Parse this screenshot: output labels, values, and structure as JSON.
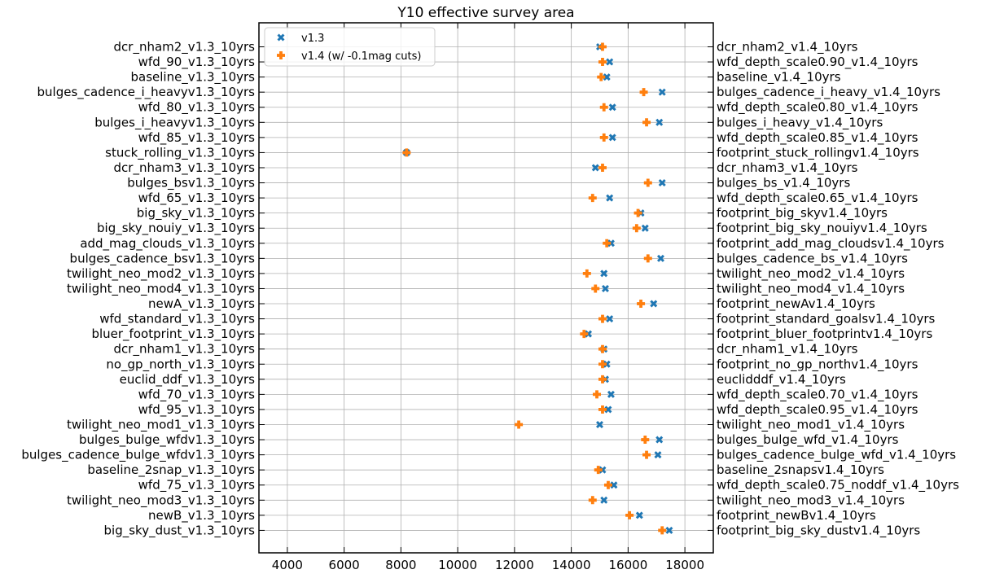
{
  "chart_data": {
    "type": "scatter",
    "title": "Y10 effective survey area",
    "xlabel": "",
    "ylabel": "",
    "xlim": [
      3000,
      19000
    ],
    "xticks": [
      4000,
      6000,
      8000,
      10000,
      12000,
      14000,
      16000,
      18000
    ],
    "grid": true,
    "legend_position": "top-left",
    "labels_left": [
      "dcr_nham2_v1.3_10yrs",
      "wfd_90_v1.3_10yrs",
      "baseline_v1.3_10yrs",
      "bulges_cadence_i_heavyv1.3_10yrs",
      "wfd_80_v1.3_10yrs",
      "bulges_i_heavyv1.3_10yrs",
      "wfd_85_v1.3_10yrs",
      "stuck_rolling_v1.3_10yrs",
      "dcr_nham3_v1.3_10yrs",
      "bulges_bsv1.3_10yrs",
      "wfd_65_v1.3_10yrs",
      "big_sky_v1.3_10yrs",
      "big_sky_nouiy_v1.3_10yrs",
      "add_mag_clouds_v1.3_10yrs",
      "bulges_cadence_bsv1.3_10yrs",
      "twilight_neo_mod2_v1.3_10yrs",
      "twilight_neo_mod4_v1.3_10yrs",
      "newA_v1.3_10yrs",
      "wfd_standard_v1.3_10yrs",
      "bluer_footprint_v1.3_10yrs",
      "dcr_nham1_v1.3_10yrs",
      "no_gp_north_v1.3_10yrs",
      "euclid_ddf_v1.3_10yrs",
      "wfd_70_v1.3_10yrs",
      "wfd_95_v1.3_10yrs",
      "twilight_neo_mod1_v1.3_10yrs",
      "bulges_bulge_wfdv1.3_10yrs",
      "bulges_cadence_bulge_wfdv1.3_10yrs",
      "baseline_2snap_v1.3_10yrs",
      "wfd_75_v1.3_10yrs",
      "twilight_neo_mod3_v1.3_10yrs",
      "newB_v1.3_10yrs",
      "big_sky_dust_v1.3_10yrs"
    ],
    "labels_right": [
      "dcr_nham2_v1.4_10yrs",
      "wfd_depth_scale0.90_v1.4_10yrs",
      "baseline_v1.4_10yrs",
      "bulges_cadence_i_heavy_v1.4_10yrs",
      "wfd_depth_scale0.80_v1.4_10yrs",
      "bulges_i_heavy_v1.4_10yrs",
      "wfd_depth_scale0.85_v1.4_10yrs",
      "footprint_stuck_rollingv1.4_10yrs",
      "dcr_nham3_v1.4_10yrs",
      "bulges_bs_v1.4_10yrs",
      "wfd_depth_scale0.65_v1.4_10yrs",
      "footprint_big_skyv1.4_10yrs",
      "footprint_big_sky_nouiyv1.4_10yrs",
      "footprint_add_mag_cloudsv1.4_10yrs",
      "bulges_cadence_bs_v1.4_10yrs",
      "twilight_neo_mod2_v1.4_10yrs",
      "twilight_neo_mod4_v1.4_10yrs",
      "footprint_newAv1.4_10yrs",
      "footprint_standard_goalsv1.4_10yrs",
      "footprint_bluer_footprintv1.4_10yrs",
      "dcr_nham1_v1.4_10yrs",
      "footprint_no_gp_northv1.4_10yrs",
      "euclidddf_v1.4_10yrs",
      "wfd_depth_scale0.70_v1.4_10yrs",
      "wfd_depth_scale0.95_v1.4_10yrs",
      "twilight_neo_mod1_v1.4_10yrs",
      "bulges_bulge_wfd_v1.4_10yrs",
      "bulges_cadence_bulge_wfd_v1.4_10yrs",
      "baseline_2snapsv1.4_10yrs",
      "wfd_depth_scale0.75_noddf_v1.4_10yrs",
      "twilight_neo_mod3_v1.4_10yrs",
      "footprint_newBv1.4_10yrs",
      "footprint_big_sky_dustv1.4_10yrs"
    ],
    "series": [
      {
        "name": "v1.3",
        "marker": "x",
        "color": "#1f77b4",
        "values": [
          15000,
          15350,
          15250,
          17200,
          15450,
          17100,
          15450,
          8200,
          14850,
          17200,
          15350,
          16450,
          16600,
          15400,
          17150,
          15150,
          15200,
          16900,
          15350,
          14600,
          15150,
          15250,
          15200,
          15400,
          15300,
          15000,
          17100,
          17050,
          15100,
          15500,
          15150,
          16400,
          17450
        ]
      },
      {
        "name": "v1.4 (w/ -0.1mag cuts)",
        "marker": "plus",
        "color": "#ff7f0e",
        "values": [
          15100,
          15100,
          15050,
          16550,
          15150,
          16650,
          15150,
          8200,
          15100,
          16700,
          14750,
          16350,
          16300,
          15250,
          16700,
          14550,
          14850,
          16450,
          15100,
          14450,
          15100,
          15100,
          15100,
          14900,
          15100,
          12150,
          16600,
          16650,
          14950,
          15300,
          14750,
          16050,
          17200
        ]
      }
    ]
  }
}
